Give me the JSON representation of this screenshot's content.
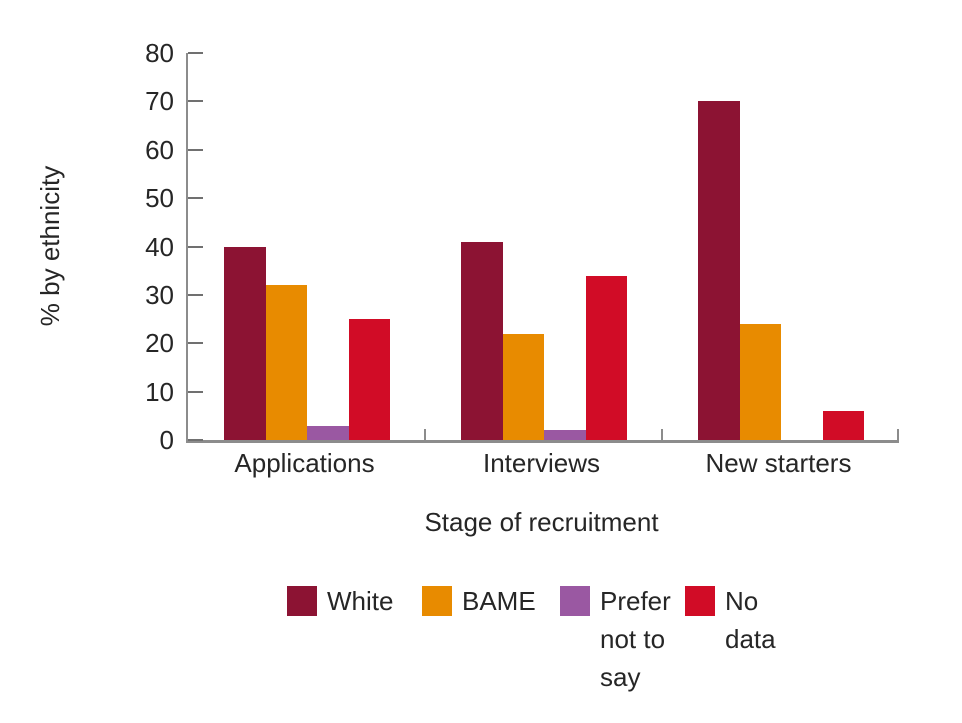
{
  "chart_data": {
    "type": "bar",
    "title": "",
    "xlabel": "Stage of recruitment",
    "ylabel": "% by ethnicity",
    "categories": [
      "Applications",
      "Interviews",
      "New starters"
    ],
    "series": [
      {
        "name": "White",
        "legend_label": "White",
        "color": "#8c1333",
        "values": [
          40,
          41,
          70
        ]
      },
      {
        "name": "BAME",
        "legend_label": "BAME",
        "color": "#e88b00",
        "values": [
          32,
          22,
          24
        ]
      },
      {
        "name": "Prefer not to say",
        "legend_label": "Prefer\nnot to\nsay",
        "color": "#9a58a2",
        "values": [
          3,
          2,
          0
        ]
      },
      {
        "name": "No data",
        "legend_label": "No data",
        "color": "#d10c26",
        "values": [
          25,
          34,
          6
        ]
      }
    ],
    "ylim": [
      0,
      80
    ],
    "yticks": [
      0,
      10,
      20,
      30,
      40,
      50,
      60,
      70,
      80
    ],
    "grid": false,
    "legend_position": "bottom"
  },
  "style_colors": {
    "axis_line": "#8c8c8c",
    "tick_mark": "#707070",
    "text": "#262626",
    "background": "#ffffff"
  }
}
